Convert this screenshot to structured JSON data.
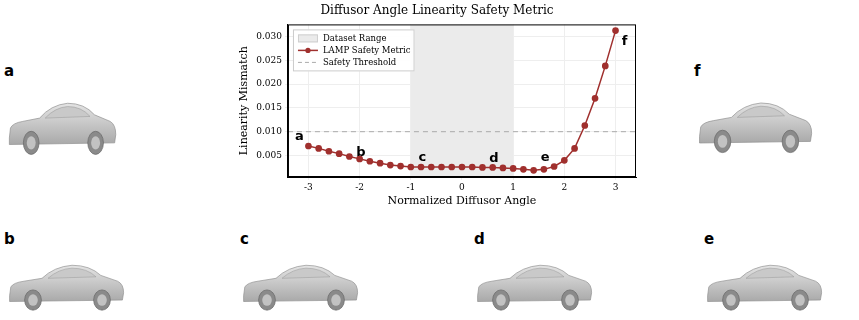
{
  "chart_data": {
    "type": "line",
    "title": "Diffusor Angle Linearity Safety Metric",
    "x_label": "Normalized Diffusor Angle",
    "y_label": "Linearity Mismatch",
    "x": [
      -3.0,
      -2.8,
      -2.6,
      -2.4,
      -2.2,
      -2.0,
      -1.8,
      -1.6,
      -1.4,
      -1.2,
      -1.0,
      -0.8,
      -0.6,
      -0.4,
      -0.2,
      0.0,
      0.2,
      0.4,
      0.6,
      0.8,
      1.0,
      1.2,
      1.4,
      1.6,
      1.8,
      2.0,
      2.2,
      2.4,
      2.6,
      2.8,
      3.0
    ],
    "series": [
      {
        "name": "LAMP Safety Metric",
        "color": "#a0302e",
        "marker": "circle",
        "line_style": "solid",
        "values": [
          0.007,
          0.0065,
          0.0059,
          0.0054,
          0.0048,
          0.0043,
          0.0038,
          0.0034,
          0.003,
          0.0028,
          0.0026,
          0.0026,
          0.0026,
          0.0026,
          0.0026,
          0.0026,
          0.0026,
          0.0025,
          0.0025,
          0.0024,
          0.0023,
          0.0021,
          0.0019,
          0.0021,
          0.0027,
          0.004,
          0.0065,
          0.0113,
          0.017,
          0.0238,
          0.0312
        ]
      }
    ],
    "threshold": {
      "label": "Safety Threshold",
      "value": 0.01,
      "color": "#aaaaaa",
      "line_style": "dashed"
    },
    "shaded_range": {
      "label": "Dataset Range",
      "x": [
        -1,
        1
      ],
      "color": "#ebebeb"
    },
    "annotations": [
      {
        "text": "a",
        "x": -3.0,
        "y": 0.007
      },
      {
        "text": "b",
        "x": -1.8,
        "y": 0.0038
      },
      {
        "text": "c",
        "x": -0.6,
        "y": 0.0026
      },
      {
        "text": "d",
        "x": 0.8,
        "y": 0.0024
      },
      {
        "text": "e",
        "x": 1.8,
        "y": 0.0027
      },
      {
        "text": "f",
        "x": 3.0,
        "y": 0.0312
      }
    ],
    "xlim": [
      -3.4,
      3.4
    ],
    "xticks": [
      -3,
      -2,
      -1,
      0,
      1,
      2,
      3
    ],
    "ylim": [
      0.0005,
      0.0325
    ],
    "yticks": [
      0.005,
      {
        "value": 0.01,
        "label": "0.010"
      },
      0.015,
      {
        "value": 0.02,
        "label": "0.020"
      },
      0.025,
      {
        "value": 0.03,
        "label": "0.030"
      }
    ],
    "grid": true,
    "legend": "upper left"
  },
  "panel_labels": [
    "a",
    "b",
    "c",
    "d",
    "e",
    "f"
  ]
}
